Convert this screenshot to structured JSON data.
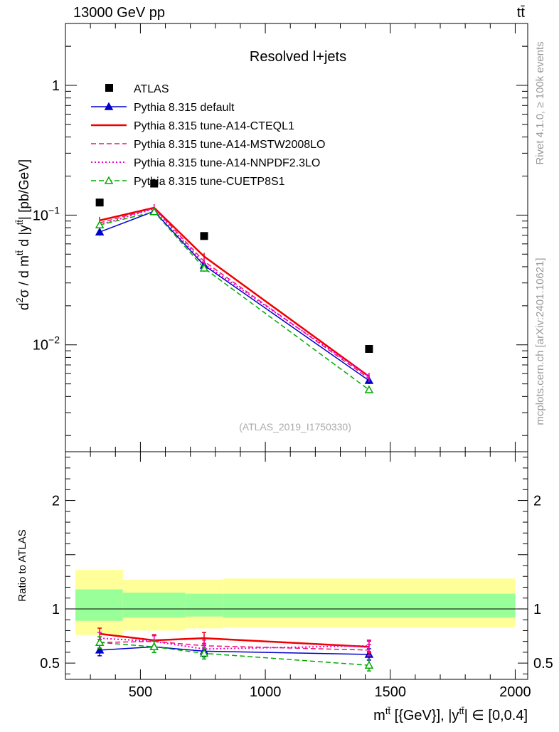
{
  "header": {
    "energy_label": "13000 GeV pp",
    "process_label": "tt̄"
  },
  "side_labels": {
    "rivet": "Rivet 4.1.0, ≥ 100k events",
    "source": "mcplots.cern.ch [arXiv:2401.10621]"
  },
  "chart_data": [
    {
      "type": "line",
      "panel": "main",
      "title": "Resolved l+jets",
      "ylabel": "d²σ / d m^{tt̄} d |y^{tt̄}| [pb/GeV]",
      "yscale": "log",
      "xlim": [
        200,
        2050
      ],
      "ylim": [
        0.0015,
        3.0
      ],
      "yticks": [
        {
          "value": 1,
          "label": "1"
        },
        {
          "value": 0.1,
          "label": "10⁻¹"
        },
        {
          "value": 0.01,
          "label": "10⁻²"
        }
      ],
      "analysis_label": "(ATLAS_2019_I1750330)",
      "x": [
        337,
        555,
        755,
        1415
      ],
      "data": {
        "name": "ATLAS",
        "color": "#000000",
        "values": [
          0.125,
          0.175,
          0.069,
          0.0093
        ]
      },
      "series": [
        {
          "name": "Pythia 8.315 default",
          "color": "#0000cc",
          "style": "solid",
          "marker": "triangle-filled",
          "values": [
            0.074,
            0.107,
            0.041,
            0.0053
          ]
        },
        {
          "name": "Pythia 8.315 tune-A14-CTEQL1",
          "color": "#ee0000",
          "style": "solid-thick",
          "marker": "none",
          "values": [
            0.091,
            0.114,
            0.048,
            0.0057
          ]
        },
        {
          "name": "Pythia 8.315 tune-A14-MSTW2008LO",
          "color": "#ee1177",
          "style": "dashed",
          "marker": "none",
          "values": [
            0.087,
            0.113,
            0.044,
            0.0055
          ]
        },
        {
          "name": "Pythia 8.315 tune-A14-NNPDF2.3LO",
          "color": "#ee00cc",
          "style": "dotted",
          "marker": "none",
          "values": [
            0.084,
            0.112,
            0.042,
            0.0057
          ]
        },
        {
          "name": "Pythia 8.315 tune-CUETP8S1",
          "color": "#00aa00",
          "style": "dashed",
          "marker": "triangle-open",
          "values": [
            0.084,
            0.106,
            0.039,
            0.0045
          ]
        }
      ]
    },
    {
      "type": "line",
      "panel": "ratio",
      "ylabel": "Ratio to ATLAS",
      "xlabel": "m^{tt̄} [{GeV}], |y^{tt̄}| ∈ [0,0.4]",
      "xlim": [
        200,
        2050
      ],
      "ylim": [
        0.35,
        2.45
      ],
      "xticks": [
        500,
        1000,
        1500,
        2000
      ],
      "yticks": [
        0.5,
        1,
        2
      ],
      "bands": {
        "edges": [
          240,
          430,
          680,
          830,
          2000
        ],
        "outer_low": [
          0.76,
          0.8,
          0.82,
          0.83
        ],
        "outer_high": [
          1.36,
          1.27,
          1.27,
          1.28
        ],
        "inner_low": [
          0.89,
          0.92,
          0.93,
          0.92
        ],
        "inner_high": [
          1.18,
          1.15,
          1.14,
          1.14
        ],
        "outer_color": "#ffff99",
        "inner_color": "#99ff99"
      },
      "x": [
        337,
        555,
        755,
        1415
      ],
      "series": [
        {
          "name": "Pythia 8.315 default",
          "values": [
            0.62,
            0.65,
            0.61,
            0.58
          ]
        },
        {
          "name": "Pythia 8.315 tune-A14-CTEQL1",
          "values": [
            0.77,
            0.71,
            0.73,
            0.65
          ]
        },
        {
          "name": "Pythia 8.315 tune-A14-MSTW2008LO",
          "values": [
            0.69,
            0.7,
            0.66,
            0.62
          ]
        },
        {
          "name": "Pythia 8.315 tune-A14-NNPDF2.3LO",
          "values": [
            0.73,
            0.7,
            0.63,
            0.66
          ]
        },
        {
          "name": "Pythia 8.315 tune-CUETP8S1",
          "values": [
            0.69,
            0.65,
            0.59,
            0.48
          ]
        }
      ]
    }
  ]
}
